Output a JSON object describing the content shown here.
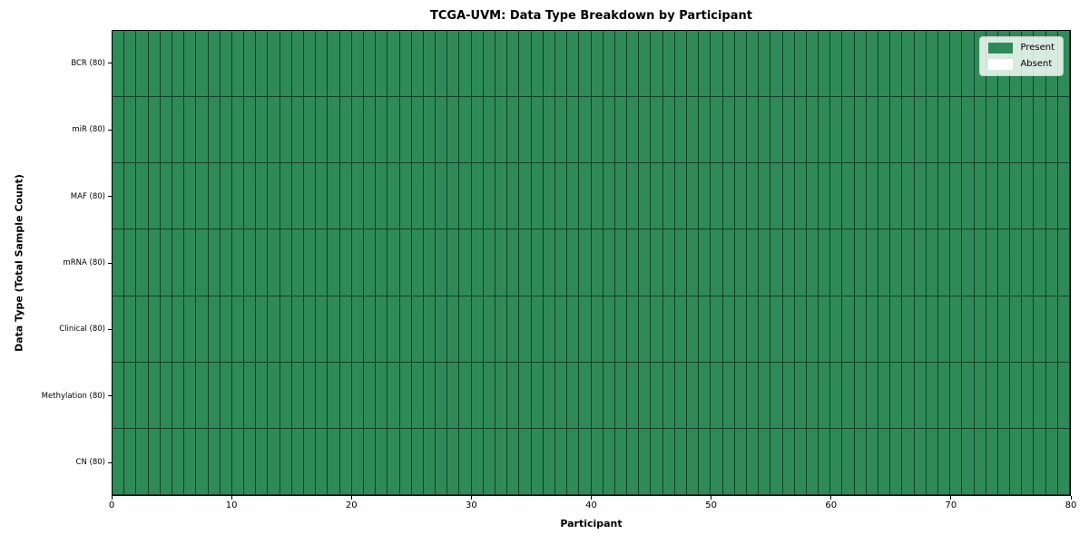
{
  "figure": {
    "title": "TCGA-UVM: Data Type Breakdown by Participant",
    "background": "#ffffff"
  },
  "axes": {
    "x": {
      "label": "Participant",
      "min": 0,
      "max": 80,
      "ticks": [
        0,
        10,
        20,
        30,
        40,
        50,
        60,
        70,
        80
      ]
    },
    "y": {
      "label": "Data Type (Total Sample Count)"
    }
  },
  "legend": {
    "items": [
      {
        "label": "Present",
        "color": "#2e8b57"
      },
      {
        "label": "Absent",
        "color": "#ffffff"
      }
    ]
  },
  "chart_data": {
    "type": "heatmap",
    "title": "TCGA-UVM: Data Type Breakdown by Participant",
    "xlabel": "Participant",
    "ylabel": "Data Type (Total Sample Count)",
    "x_range": [
      0,
      80
    ],
    "n_participants": 80,
    "legend": [
      "Present",
      "Absent"
    ],
    "legend_position": "upper right",
    "grid": true,
    "cell_colors": {
      "present": "#2e8b57",
      "absent": "#ffffff"
    },
    "cell_border_color": "rgba(0,0,0,0.55)",
    "rows": [
      {
        "label": "BCR (80)",
        "data_type": "BCR",
        "total_samples": 80,
        "present_count": 80
      },
      {
        "label": "miR (80)",
        "data_type": "miR",
        "total_samples": 80,
        "present_count": 80
      },
      {
        "label": "MAF (80)",
        "data_type": "MAF",
        "total_samples": 80,
        "present_count": 80
      },
      {
        "label": "mRNA (80)",
        "data_type": "mRNA",
        "total_samples": 80,
        "present_count": 80
      },
      {
        "label": "Clinical (80)",
        "data_type": "Clinical",
        "total_samples": 80,
        "present_count": 80
      },
      {
        "label": "Methylation (80)",
        "data_type": "Methylation",
        "total_samples": 80,
        "present_count": 80
      },
      {
        "label": "CN (80)",
        "data_type": "CN",
        "total_samples": 80,
        "present_count": 80
      }
    ]
  }
}
